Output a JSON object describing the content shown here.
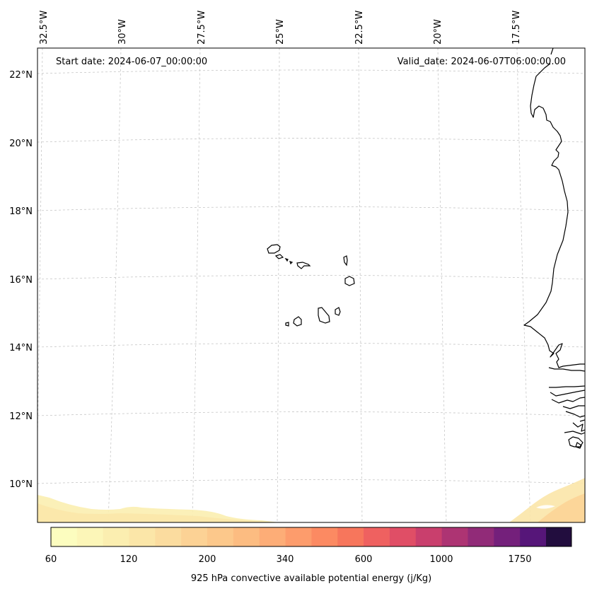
{
  "header": {
    "start_date": "Start date: 2024-06-07_00:00:00",
    "valid_date": "Valid_date: 2024-06-07T06:00:00.00"
  },
  "map": {
    "lon_labels": [
      "32.5°W",
      "30°W",
      "27.5°W",
      "25°W",
      "22.5°W",
      "20°W",
      "17.5°W"
    ],
    "lat_labels": [
      "22°N",
      "20°N",
      "18°N",
      "16°N",
      "14°N",
      "12°N",
      "10°N"
    ],
    "gridlines": true
  },
  "colorbar": {
    "label": "925 hPa convective available potential energy (j/Kg)",
    "tick_labels": [
      "60",
      "120",
      "200",
      "340",
      "600",
      "1000",
      "1750"
    ],
    "colors": [
      "#fcfdbf",
      "#fcf6b8",
      "#fbeeb0",
      "#fbe6a8",
      "#fbdc9f",
      "#fcd295",
      "#fcc88b",
      "#fcbc81",
      "#fdad77",
      "#fd9c6c",
      "#fc8a62",
      "#f7765c",
      "#ef6160",
      "#e04e66",
      "#c93f6d",
      "#ad3473",
      "#912b78",
      "#74207b",
      "#561679",
      "#220d3e"
    ],
    "extend": "right"
  }
}
